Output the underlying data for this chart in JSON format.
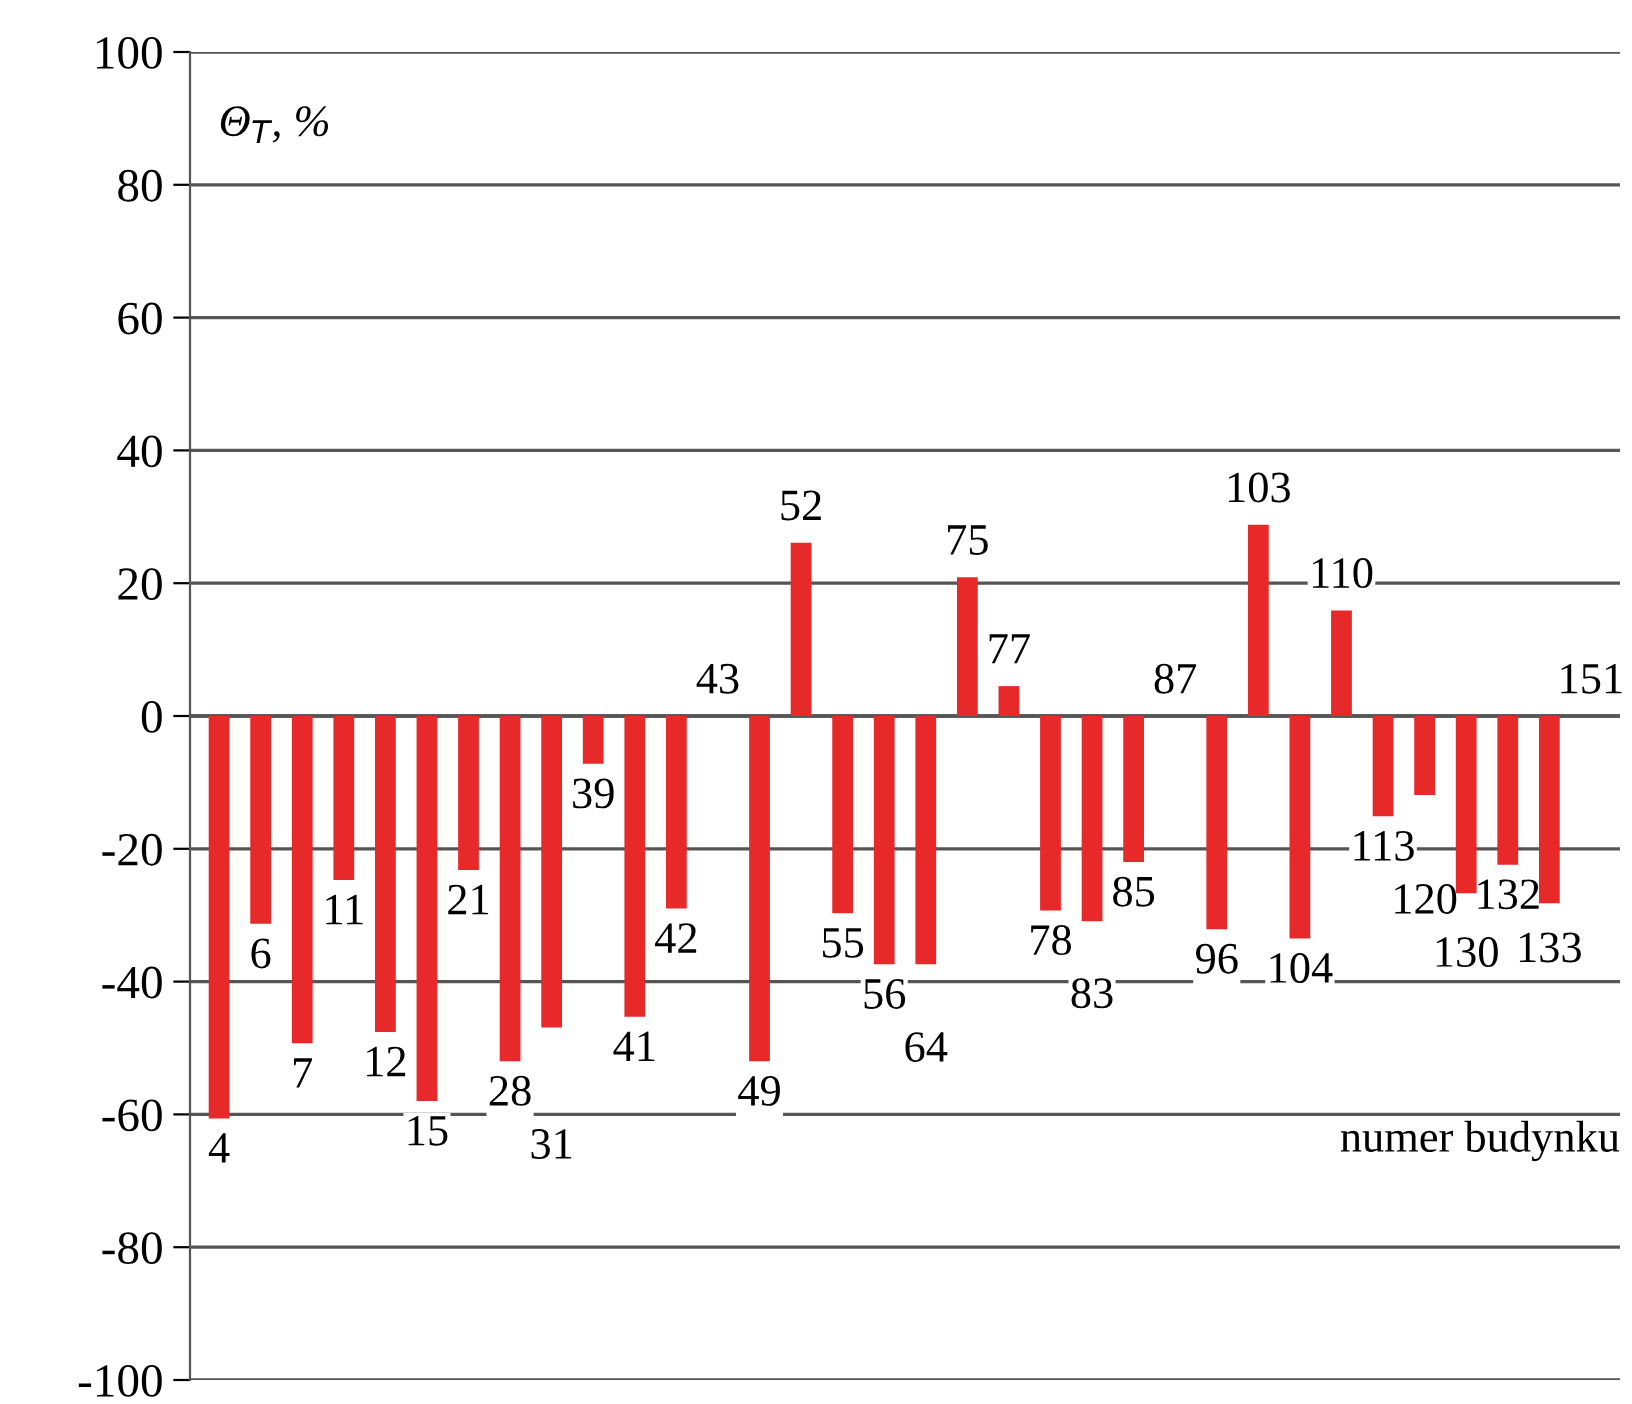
{
  "chart_data": {
    "type": "bar",
    "ylabel": "Θ$_{T}$, %",
    "xlabel": "numer budynku",
    "categories": [
      "4",
      "6",
      "7",
      "11",
      "12",
      "15",
      "21",
      "28",
      "31",
      "39",
      "41",
      "42",
      "43",
      "49",
      "52",
      "55",
      "56",
      "64",
      "75",
      "77",
      "78",
      "83",
      "85",
      "87",
      "96",
      "103",
      "104",
      "110",
      "113",
      "120",
      "130",
      "132",
      "133",
      "151"
    ],
    "values": [
      -60.6,
      -31.3,
      -49.3,
      -24.7,
      -47.6,
      -58,
      -23.2,
      -52,
      -46.9,
      -7.2,
      -45.3,
      -29,
      0,
      -52,
      26.1,
      -29.7,
      -37.4,
      -37.4,
      20.9,
      4.5,
      -29.3,
      -30.9,
      -22,
      0,
      -32.1,
      28.8,
      -33.5,
      15.9,
      -15.1,
      -11.9,
      -26.7,
      -22.4,
      -28.2,
      0
    ],
    "color": "#e8292a",
    "ylim": [
      -100,
      100
    ],
    "yticks": [
      -100,
      -80,
      -60,
      -40,
      -20,
      0,
      20,
      40,
      60,
      80,
      100
    ],
    "grid": "y",
    "legend": false
  }
}
